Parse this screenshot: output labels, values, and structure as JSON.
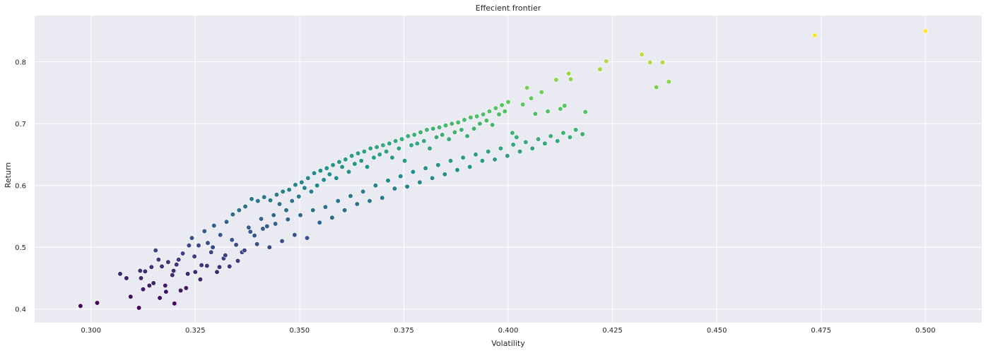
{
  "chart_data": {
    "type": "scatter",
    "title": "Effecient frontier",
    "xlabel": "Volatility",
    "ylabel": "Return",
    "xlim": [
      0.2865,
      0.5135
    ],
    "ylim": [
      0.378,
      0.875
    ],
    "xticks": [
      "0.300",
      "0.325",
      "0.350",
      "0.375",
      "0.400",
      "0.425",
      "0.450",
      "0.475",
      "0.500"
    ],
    "yticks": [
      "0.4",
      "0.5",
      "0.6",
      "0.7",
      "0.8"
    ],
    "grid": true,
    "colormap": "viridis",
    "colormap_stops": [
      "#440154",
      "#3b528b",
      "#21918c",
      "#5ec962",
      "#fde725"
    ],
    "color_range": [
      0.4,
      0.85
    ],
    "background": "#eaeaf2",
    "points": {
      "x": [
        0.2975,
        0.3015,
        0.307,
        0.3095,
        0.3085,
        0.3115,
        0.3125,
        0.313,
        0.3118,
        0.314,
        0.315,
        0.3155,
        0.3165,
        0.317,
        0.318,
        0.3185,
        0.3195,
        0.32,
        0.321,
        0.322,
        0.3228,
        0.3235,
        0.3242,
        0.325,
        0.3258,
        0.3265,
        0.3272,
        0.328,
        0.3288,
        0.3295,
        0.3302,
        0.331,
        0.3318,
        0.3325,
        0.3332,
        0.334,
        0.3348,
        0.3355,
        0.3362,
        0.337,
        0.3378,
        0.3385,
        0.3392,
        0.34,
        0.3408,
        0.3415,
        0.3422,
        0.343,
        0.3438,
        0.3445,
        0.3452,
        0.346,
        0.3468,
        0.3475,
        0.3482,
        0.349,
        0.3498,
        0.3505,
        0.3512,
        0.352,
        0.3528,
        0.3535,
        0.3542,
        0.355,
        0.3558,
        0.3565,
        0.3572,
        0.358,
        0.3588,
        0.3595,
        0.3602,
        0.361,
        0.3618,
        0.3625,
        0.3632,
        0.364,
        0.3648,
        0.3655,
        0.3662,
        0.367,
        0.3678,
        0.3685,
        0.3692,
        0.37,
        0.3708,
        0.3715,
        0.3722,
        0.373,
        0.3738,
        0.3745,
        0.3752,
        0.376,
        0.3768,
        0.3775,
        0.3782,
        0.379,
        0.3798,
        0.3805,
        0.3812,
        0.382,
        0.3828,
        0.3835,
        0.3842,
        0.385,
        0.3858,
        0.3865,
        0.3872,
        0.388,
        0.3888,
        0.3895,
        0.3902,
        0.391,
        0.3918,
        0.3925,
        0.3932,
        0.394,
        0.3948,
        0.3955,
        0.3962,
        0.397,
        0.3978,
        0.3985,
        0.3992,
        0.4,
        0.401,
        0.402,
        0.4035,
        0.4045,
        0.4055,
        0.4065,
        0.408,
        0.4095,
        0.4115,
        0.4125,
        0.4135,
        0.4145,
        0.415,
        0.4185,
        0.422,
        0.4235,
        0.432,
        0.434,
        0.4355,
        0.437,
        0.4385,
        0.4735,
        0.5,
        0.312,
        0.3145,
        0.3162,
        0.3178,
        0.3198,
        0.3205,
        0.3215,
        0.3232,
        0.3248,
        0.3262,
        0.3278,
        0.3292,
        0.3308,
        0.3322,
        0.3338,
        0.3352,
        0.3368,
        0.3382,
        0.3398,
        0.3412,
        0.3428,
        0.3442,
        0.3458,
        0.3472,
        0.3488,
        0.3502,
        0.3518,
        0.3532,
        0.3548,
        0.3562,
        0.3578,
        0.3592,
        0.3608,
        0.3622,
        0.3638,
        0.3652,
        0.3668,
        0.3682,
        0.3698,
        0.3712,
        0.3728,
        0.3742,
        0.3758,
        0.3772,
        0.3788,
        0.3802,
        0.3818,
        0.3832,
        0.3848,
        0.3862,
        0.3878,
        0.3892,
        0.3908,
        0.3922,
        0.3938,
        0.3952,
        0.3968,
        0.3982,
        0.3998,
        0.4012,
        0.4028,
        0.4042,
        0.4058,
        0.4072,
        0.4088,
        0.4102,
        0.4118,
        0.4132,
        0.4148,
        0.4162,
        0.4178
      ],
      "y": [
        0.405,
        0.41,
        0.457,
        0.42,
        0.45,
        0.402,
        0.432,
        0.461,
        0.462,
        0.438,
        0.442,
        0.495,
        0.418,
        0.469,
        0.428,
        0.476,
        0.455,
        0.409,
        0.48,
        0.49,
        0.434,
        0.503,
        0.515,
        0.46,
        0.503,
        0.471,
        0.526,
        0.507,
        0.492,
        0.535,
        0.46,
        0.52,
        0.482,
        0.541,
        0.469,
        0.553,
        0.504,
        0.56,
        0.492,
        0.566,
        0.532,
        0.578,
        0.519,
        0.575,
        0.546,
        0.581,
        0.534,
        0.576,
        0.552,
        0.585,
        0.57,
        0.59,
        0.56,
        0.593,
        0.575,
        0.601,
        0.582,
        0.605,
        0.596,
        0.612,
        0.59,
        0.62,
        0.6,
        0.624,
        0.609,
        0.628,
        0.618,
        0.633,
        0.612,
        0.638,
        0.63,
        0.642,
        0.622,
        0.648,
        0.635,
        0.652,
        0.64,
        0.655,
        0.63,
        0.66,
        0.645,
        0.662,
        0.65,
        0.665,
        0.655,
        0.668,
        0.645,
        0.672,
        0.66,
        0.675,
        0.64,
        0.68,
        0.665,
        0.682,
        0.668,
        0.686,
        0.672,
        0.69,
        0.66,
        0.692,
        0.678,
        0.694,
        0.682,
        0.697,
        0.675,
        0.7,
        0.686,
        0.702,
        0.69,
        0.706,
        0.68,
        0.71,
        0.692,
        0.712,
        0.7,
        0.715,
        0.705,
        0.72,
        0.698,
        0.725,
        0.715,
        0.73,
        0.72,
        0.735,
        0.685,
        0.678,
        0.731,
        0.758,
        0.741,
        0.716,
        0.751,
        0.72,
        0.771,
        0.724,
        0.729,
        0.781,
        0.772,
        0.719,
        0.788,
        0.801,
        0.812,
        0.799,
        0.759,
        0.799,
        0.768,
        0.843,
        0.85,
        0.45,
        0.468,
        0.48,
        0.438,
        0.462,
        0.472,
        0.43,
        0.457,
        0.485,
        0.448,
        0.47,
        0.5,
        0.468,
        0.487,
        0.512,
        0.478,
        0.495,
        0.525,
        0.505,
        0.53,
        0.5,
        0.538,
        0.51,
        0.545,
        0.52,
        0.552,
        0.515,
        0.56,
        0.54,
        0.565,
        0.548,
        0.575,
        0.56,
        0.583,
        0.57,
        0.59,
        0.575,
        0.6,
        0.58,
        0.608,
        0.595,
        0.615,
        0.598,
        0.622,
        0.605,
        0.628,
        0.612,
        0.633,
        0.618,
        0.64,
        0.625,
        0.645,
        0.63,
        0.65,
        0.64,
        0.655,
        0.642,
        0.66,
        0.648,
        0.666,
        0.655,
        0.67,
        0.66,
        0.675,
        0.668,
        0.68,
        0.672,
        0.685,
        0.678,
        0.69,
        0.683
      ]
    }
  }
}
